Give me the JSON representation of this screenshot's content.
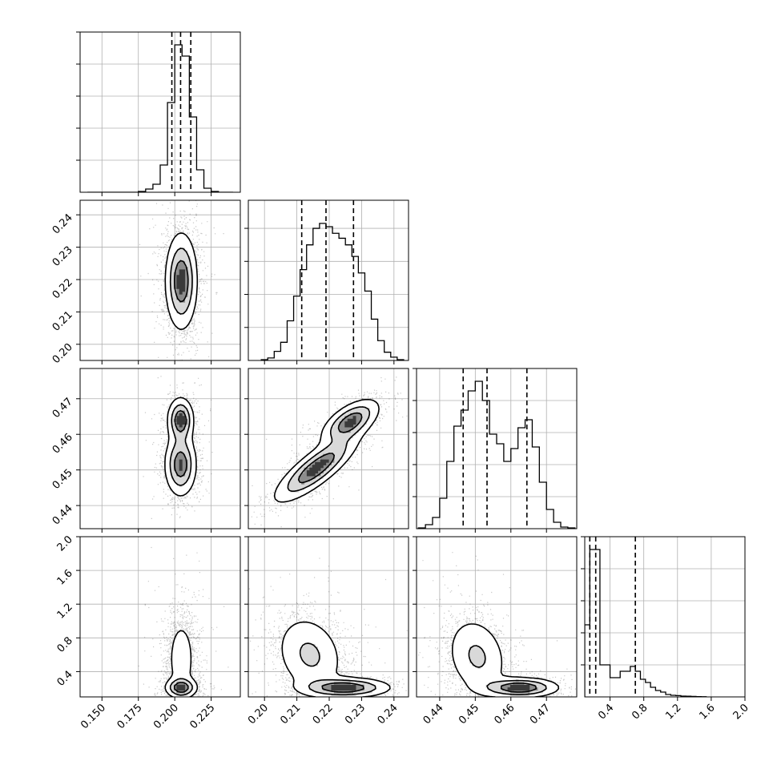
{
  "chart_data": {
    "type": "corner",
    "n_params": 4,
    "grid": true,
    "params": [
      {
        "range": [
          0.135,
          0.245
        ],
        "ticks": [
          0.15,
          0.175,
          0.2,
          0.225
        ],
        "tick_labels": [
          "0.150",
          "0.175",
          "0.200",
          "0.225"
        ]
      },
      {
        "range": [
          0.195,
          0.2445
        ],
        "ticks": [
          0.2,
          0.21,
          0.22,
          0.23,
          0.24
        ],
        "tick_labels": [
          "0.20",
          "0.21",
          "0.22",
          "0.23",
          "0.24"
        ]
      },
      {
        "range": [
          0.4335,
          0.4785
        ],
        "ticks": [
          0.44,
          0.45,
          0.46,
          0.47
        ],
        "tick_labels": [
          "0.44",
          "0.45",
          "0.46",
          "0.47"
        ]
      },
      {
        "range": [
          0.1,
          2.0
        ],
        "ticks": [
          0.4,
          0.8,
          1.2,
          1.6,
          2.0
        ],
        "tick_labels": [
          "0.4",
          "0.8",
          "1.2",
          "1.6",
          "2.0"
        ]
      }
    ],
    "histograms": [
      {
        "edges": [
          0.14,
          0.145,
          0.15,
          0.155,
          0.16,
          0.165,
          0.17,
          0.175,
          0.18,
          0.185,
          0.19,
          0.195,
          0.2,
          0.205,
          0.21,
          0.215,
          0.22,
          0.225,
          0.23,
          0.235,
          0.24
        ],
        "counts": [
          0,
          0,
          0,
          0,
          0,
          0,
          0,
          0.005,
          0.02,
          0.05,
          0.17,
          0.56,
          0.92,
          0.85,
          0.47,
          0.14,
          0.025,
          0.005,
          0,
          0
        ],
        "quantiles": [
          0.198,
          0.204,
          0.211
        ],
        "ymax": 1.0
      },
      {
        "edges": [
          0.199,
          0.201,
          0.203,
          0.205,
          0.207,
          0.209,
          0.211,
          0.213,
          0.215,
          0.217,
          0.219,
          0.221,
          0.223,
          0.225,
          0.227,
          0.229,
          0.231,
          0.233,
          0.235,
          0.237,
          0.239,
          0.241,
          0.243
        ],
        "counts": [
          0.005,
          0.015,
          0.055,
          0.11,
          0.24,
          0.39,
          0.55,
          0.7,
          0.8,
          0.83,
          0.81,
          0.77,
          0.74,
          0.7,
          0.63,
          0.53,
          0.42,
          0.25,
          0.12,
          0.05,
          0.02,
          0.005
        ],
        "quantiles": [
          0.2115,
          0.219,
          0.2275
        ],
        "ymax": 0.97
      },
      {
        "edges": [
          0.434,
          0.436,
          0.438,
          0.44,
          0.442,
          0.444,
          0.446,
          0.448,
          0.45,
          0.452,
          0.454,
          0.456,
          0.458,
          0.46,
          0.462,
          0.464,
          0.466,
          0.468,
          0.47,
          0.472,
          0.474,
          0.476,
          0.478
        ],
        "counts": [
          0.005,
          0.025,
          0.07,
          0.19,
          0.42,
          0.64,
          0.74,
          0.86,
          0.92,
          0.8,
          0.59,
          0.53,
          0.42,
          0.5,
          0.63,
          0.68,
          0.51,
          0.29,
          0.12,
          0.04,
          0.01,
          0.005
        ],
        "quantiles": [
          0.4466,
          0.4533,
          0.4645
        ],
        "ymax": 1.0
      },
      {
        "edges": [
          0.1,
          0.16,
          0.22,
          0.28,
          0.34,
          0.4,
          0.46,
          0.52,
          0.58,
          0.64,
          0.7,
          0.76,
          0.82,
          0.88,
          0.94,
          1.0,
          1.06,
          1.12,
          1.18,
          1.24,
          1.3,
          1.36,
          1.42,
          1.48,
          1.54
        ],
        "counts": [
          0.45,
          0.92,
          0.92,
          0.2,
          0.2,
          0.12,
          0.12,
          0.16,
          0.16,
          0.19,
          0.16,
          0.11,
          0.09,
          0.06,
          0.04,
          0.03,
          0.015,
          0.01,
          0.008,
          0.005,
          0.004,
          0.003,
          0.002,
          0.001
        ],
        "quantiles": [
          0.16,
          0.23,
          0.7
        ],
        "ymax": 1.0
      }
    ],
    "pairs": [
      {
        "row": 1,
        "col": 0,
        "clusters": [
          {
            "mx": 0.2045,
            "my": 0.2195,
            "sx": 0.0055,
            "sy": 0.0075,
            "rho": 0,
            "w": 1
          }
        ]
      },
      {
        "row": 2,
        "col": 0,
        "clusters": [
          {
            "mx": 0.204,
            "my": 0.4515,
            "sx": 0.0055,
            "sy": 0.0045,
            "rho": 0,
            "w": 0.62
          },
          {
            "mx": 0.204,
            "my": 0.464,
            "sx": 0.0045,
            "sy": 0.0032,
            "rho": 0,
            "w": 0.38
          }
        ]
      },
      {
        "row": 2,
        "col": 1,
        "clusters": [
          {
            "mx": 0.216,
            "my": 0.4505,
            "sx": 0.0065,
            "sy": 0.0048,
            "rho": 0.82,
            "w": 0.62
          },
          {
            "mx": 0.2265,
            "my": 0.4635,
            "sx": 0.0045,
            "sy": 0.0032,
            "rho": 0.6,
            "w": 0.38
          }
        ]
      },
      {
        "row": 3,
        "col": 0,
        "clusters": [
          {
            "mx": 0.2045,
            "my": 0.55,
            "sx": 0.0055,
            "sy": 0.28,
            "rho": 0,
            "w": 0.6
          },
          {
            "mx": 0.2045,
            "my": 0.21,
            "sx": 0.0055,
            "sy": 0.06,
            "rho": 0,
            "w": 0.4
          }
        ]
      },
      {
        "row": 3,
        "col": 1,
        "clusters": [
          {
            "mx": 0.214,
            "my": 0.6,
            "sx": 0.0055,
            "sy": 0.25,
            "rho": -0.2,
            "w": 0.6
          },
          {
            "mx": 0.225,
            "my": 0.21,
            "sx": 0.007,
            "sy": 0.06,
            "rho": 0,
            "w": 0.4
          }
        ]
      },
      {
        "row": 3,
        "col": 2,
        "clusters": [
          {
            "mx": 0.4505,
            "my": 0.58,
            "sx": 0.0045,
            "sy": 0.25,
            "rho": -0.2,
            "w": 0.6
          },
          {
            "mx": 0.4625,
            "my": 0.21,
            "sx": 0.0055,
            "sy": 0.06,
            "rho": 0,
            "w": 0.4
          }
        ]
      }
    ]
  }
}
